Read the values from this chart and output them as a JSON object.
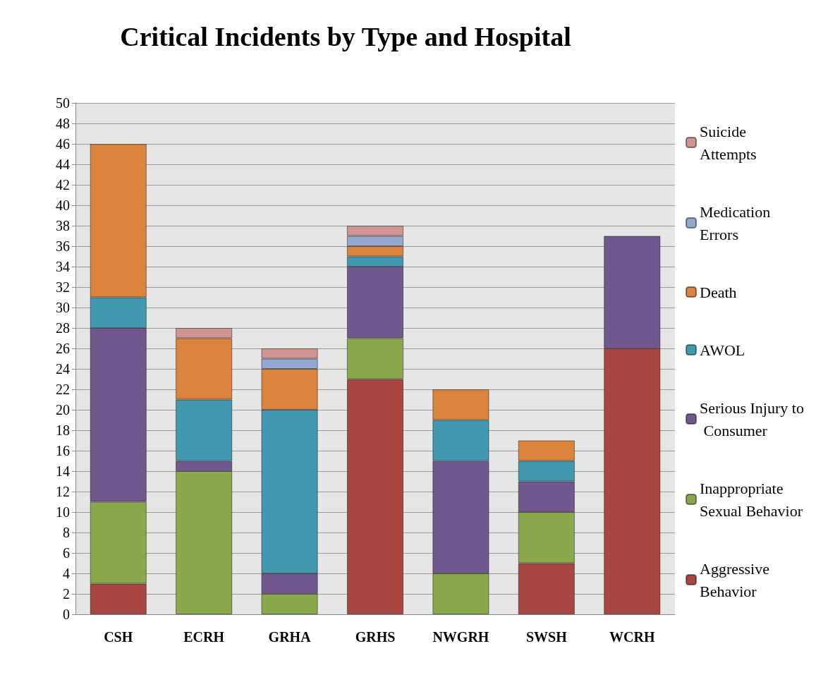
{
  "chart_data": {
    "type": "bar",
    "title": "Critical Incidents by Type and Hospital",
    "categories": [
      "CSH",
      "ECRH",
      "GRHA",
      "GRHS",
      "NWGRH",
      "SWSH",
      "WCRH"
    ],
    "stacked": true,
    "ylim": [
      0,
      50
    ],
    "yticks": [
      0,
      2,
      4,
      6,
      8,
      10,
      12,
      14,
      16,
      18,
      20,
      22,
      24,
      26,
      28,
      30,
      32,
      34,
      36,
      38,
      40,
      42,
      44,
      46,
      48,
      50
    ],
    "grid": "y",
    "legend": "right",
    "series": [
      {
        "name": "Aggressive Behavior",
        "color": "#a84642",
        "values": [
          3,
          null,
          null,
          23,
          null,
          5,
          26
        ]
      },
      {
        "name": "Inappropriate Sexual Behavior",
        "color": "#8aa84c",
        "values": [
          8,
          14,
          2,
          4,
          4,
          5,
          null
        ]
      },
      {
        "name": "Serious Injury to Consumer",
        "color": "#71588f",
        "values": [
          17,
          1,
          2,
          7,
          11,
          3,
          11
        ]
      },
      {
        "name": "AWOL",
        "color": "#4198af",
        "values": [
          3,
          6,
          16,
          1,
          4,
          2,
          null
        ]
      },
      {
        "name": "Death",
        "color": "#db843d",
        "values": [
          15,
          6,
          4,
          1,
          3,
          2,
          null
        ]
      },
      {
        "name": "Medication Errors",
        "color": "#93a9cf",
        "values": [
          null,
          null,
          1,
          1,
          null,
          null,
          null
        ]
      },
      {
        "name": "Suicide Attempts",
        "color": "#d09493",
        "values": [
          null,
          1,
          1,
          1,
          null,
          null,
          null
        ]
      }
    ]
  }
}
